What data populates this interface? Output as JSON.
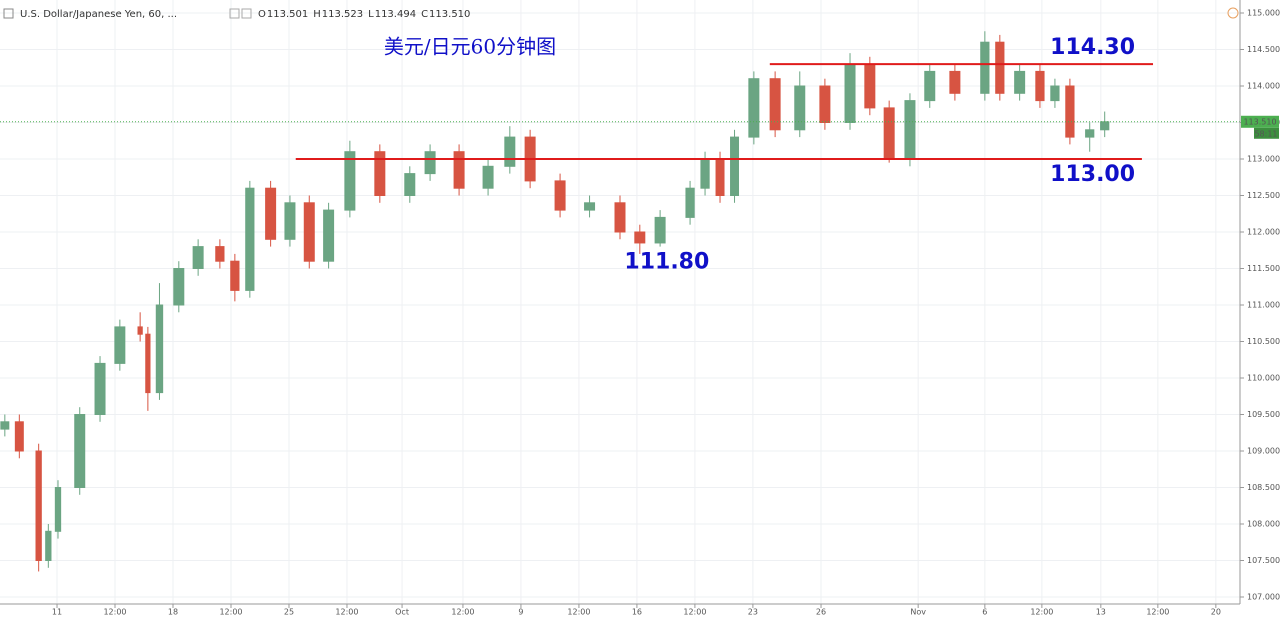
{
  "chart_data": {
    "type": "candlestick",
    "header": "U.S. Dollar/Japanese Yen, 60, ...",
    "ohlc_legend": [
      {
        "key": "O",
        "text": "113.501"
      },
      {
        "key": "H",
        "text": "113.523"
      },
      {
        "key": "L",
        "text": "113.494"
      },
      {
        "key": "C",
        "text": "113.510"
      }
    ],
    "title": "美元/日元60分钟图",
    "ylim": [
      107,
      115
    ],
    "yticks": [
      {
        "value": 107,
        "label": "107.000"
      },
      {
        "value": 107.5,
        "label": "107.500"
      },
      {
        "value": 108,
        "label": "108.000"
      },
      {
        "value": 108.5,
        "label": "108.500"
      },
      {
        "value": 109,
        "label": "109.000"
      },
      {
        "value": 109.5,
        "label": "109.500"
      },
      {
        "value": 110,
        "label": "110.000"
      },
      {
        "value": 110.5,
        "label": "110.500"
      },
      {
        "value": 111,
        "label": "111.000"
      },
      {
        "value": 111.5,
        "label": "111.500"
      },
      {
        "value": 112,
        "label": "112.000"
      },
      {
        "value": 112.5,
        "label": "112.500"
      },
      {
        "value": 113,
        "label": "113.000"
      },
      {
        "value": 113.5,
        "label": "113.500"
      },
      {
        "value": 114,
        "label": "114.000"
      },
      {
        "value": 114.5,
        "label": "114.500"
      },
      {
        "value": 115,
        "label": "115.000"
      }
    ],
    "xlim": [
      0,
      256.6
    ],
    "xticks": [
      {
        "value": 11.8,
        "label": "11"
      },
      {
        "value": 23.8,
        "label": "12:00"
      },
      {
        "value": 35.8,
        "label": "18"
      },
      {
        "value": 47.8,
        "label": "12:00"
      },
      {
        "value": 59.8,
        "label": "25"
      },
      {
        "value": 71.8,
        "label": "12:00"
      },
      {
        "value": 83.2,
        "label": "Oct"
      },
      {
        "value": 95.8,
        "label": "12:00"
      },
      {
        "value": 107.8,
        "label": "9"
      },
      {
        "value": 119.8,
        "label": "12:00"
      },
      {
        "value": 131.8,
        "label": "16"
      },
      {
        "value": 143.8,
        "label": "12:00"
      },
      {
        "value": 155.8,
        "label": "23"
      },
      {
        "value": 169.9,
        "label": "26"
      },
      {
        "value": 190,
        "label": "Nov"
      },
      {
        "value": 203.8,
        "label": "6"
      },
      {
        "value": 215.6,
        "label": "12:00"
      },
      {
        "value": 227.8,
        "label": "13"
      },
      {
        "value": 239.6,
        "label": "12:00"
      },
      {
        "value": 251.6,
        "label": "20"
      }
    ],
    "grid": true,
    "up_color": "#6ba583",
    "down_color": "#d75442",
    "series": [
      {
        "x": [
          1,
          4,
          8,
          10,
          12,
          16.5,
          20.7,
          24.8,
          29,
          30.6,
          33,
          37,
          41,
          45.5,
          48.6,
          51.7,
          56,
          60,
          64,
          68,
          72.4,
          78.6,
          84.8,
          89,
          95,
          101,
          105.5,
          109.7,
          115.9,
          122,
          128.3,
          132.4,
          136.6,
          142.8,
          145.9,
          149,
          152,
          156,
          160.4,
          165.5,
          170.7,
          175.9,
          180,
          184,
          188.3,
          192.4,
          197.6,
          203.8,
          206.9,
          211,
          215.2,
          218.3,
          221.4,
          225.5,
          228.6
        ],
        "open": [
          109.3,
          109.4,
          109.0,
          107.5,
          107.9,
          108.5,
          109.5,
          110.2,
          110.7,
          110.6,
          109.8,
          111.0,
          111.5,
          111.8,
          111.6,
          111.2,
          112.6,
          111.9,
          112.4,
          111.6,
          112.3,
          113.1,
          112.5,
          112.8,
          113.1,
          112.6,
          112.9,
          113.3,
          112.7,
          112.3,
          112.4,
          112.0,
          111.85,
          112.2,
          112.6,
          113.0,
          112.5,
          113.3,
          114.1,
          113.4,
          114.0,
          113.5,
          114.3,
          113.7,
          113.0,
          113.8,
          114.2,
          113.9,
          114.6,
          113.9,
          114.2,
          113.8,
          114.0,
          113.3,
          113.4
        ],
        "high": [
          109.5,
          109.5,
          109.1,
          108.0,
          108.6,
          109.6,
          110.3,
          110.8,
          110.9,
          110.7,
          111.3,
          111.6,
          111.9,
          111.9,
          111.7,
          112.7,
          112.7,
          112.5,
          112.5,
          112.4,
          113.25,
          113.2,
          112.9,
          113.2,
          113.2,
          113.0,
          113.45,
          113.4,
          112.8,
          112.5,
          112.5,
          112.1,
          112.3,
          112.7,
          113.1,
          113.1,
          113.4,
          114.2,
          114.2,
          114.2,
          114.1,
          114.45,
          114.4,
          113.8,
          113.9,
          114.3,
          114.3,
          114.75,
          114.7,
          114.3,
          114.3,
          114.1,
          114.1,
          113.5,
          113.65
        ],
        "low": [
          109.2,
          108.9,
          107.35,
          107.4,
          107.8,
          108.4,
          109.4,
          110.1,
          110.5,
          109.55,
          109.7,
          110.9,
          111.4,
          111.5,
          111.05,
          111.1,
          111.8,
          111.8,
          111.5,
          111.5,
          112.2,
          112.4,
          112.4,
          112.7,
          112.5,
          112.5,
          112.8,
          112.6,
          112.2,
          112.2,
          111.9,
          111.7,
          111.8,
          112.1,
          112.5,
          112.4,
          112.4,
          113.2,
          113.3,
          113.3,
          113.4,
          113.4,
          113.6,
          112.95,
          112.9,
          113.7,
          113.8,
          113.8,
          113.8,
          113.8,
          113.7,
          113.7,
          113.2,
          113.1,
          113.3
        ],
        "close": [
          109.4,
          109.0,
          107.5,
          107.9,
          108.5,
          109.5,
          110.2,
          110.7,
          110.6,
          109.8,
          111.0,
          111.5,
          111.8,
          111.6,
          111.2,
          112.6,
          111.9,
          112.4,
          111.6,
          112.3,
          113.1,
          112.5,
          112.8,
          113.1,
          112.6,
          112.9,
          113.3,
          112.7,
          112.3,
          112.4,
          112.0,
          111.85,
          112.2,
          112.6,
          113.0,
          112.5,
          113.3,
          114.1,
          113.4,
          114.0,
          113.5,
          114.3,
          113.7,
          113.0,
          113.8,
          114.2,
          113.9,
          114.6,
          113.9,
          114.2,
          113.8,
          114.0,
          113.3,
          113.4,
          113.51
        ]
      }
    ],
    "last_price": {
      "value": 113.51,
      "label": "113.510",
      "color": "#4caf50"
    },
    "countdown": "58:11",
    "level_lines": [
      {
        "value": 114.3,
        "x": [
          159.3,
          238.6
        ],
        "color": "#e01b1b"
      },
      {
        "value": 113.0,
        "x": [
          61.2,
          236.3
        ],
        "color": "#e01b1b"
      }
    ],
    "annotations": [
      {
        "value": 114.3,
        "text": "114.30",
        "x": 226.1,
        "position": "above"
      },
      {
        "value": 113.0,
        "text": "113.00",
        "x": 226.1,
        "position": "below"
      },
      {
        "value": 111.8,
        "text": "111.80",
        "x": 138.0,
        "position": "below"
      }
    ],
    "annotation_color": "#1010c8"
  }
}
